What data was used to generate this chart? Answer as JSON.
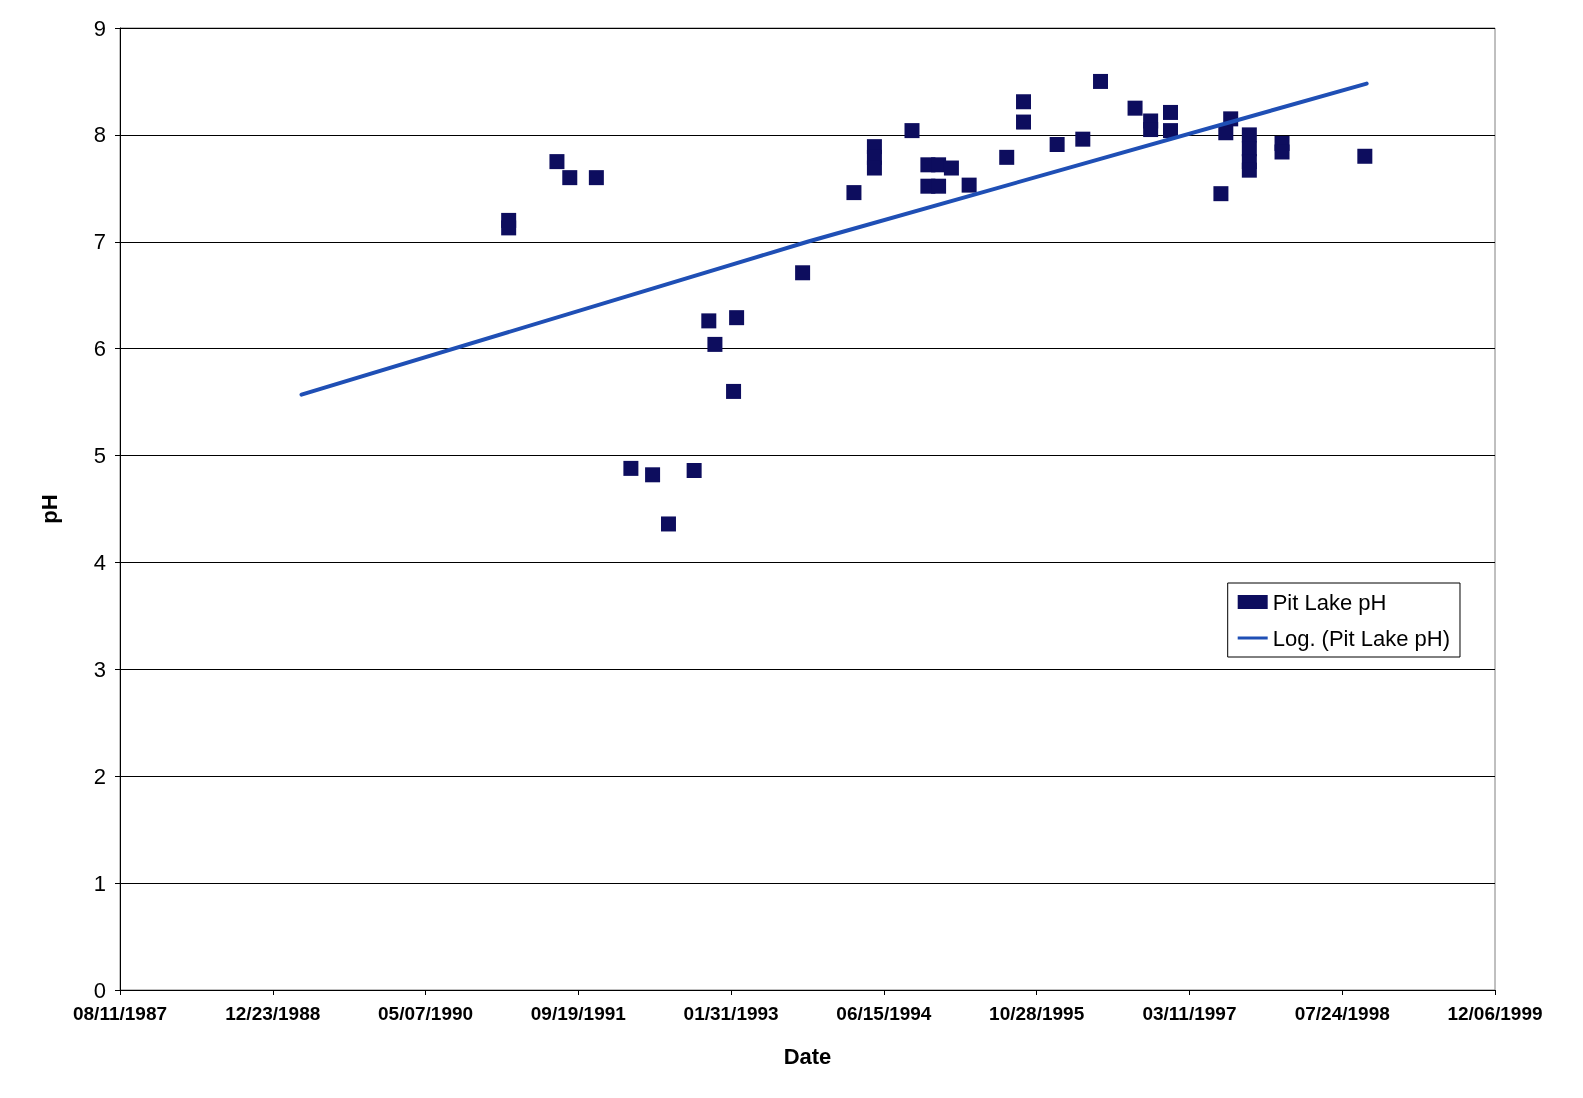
{
  "chart_data": {
    "type": "scatter",
    "xlabel": "Date",
    "ylabel": "pH",
    "xlim": [
      "1987-08-11",
      "1999-12-06"
    ],
    "xticks": [
      {
        "value": "1987-08-11",
        "label": "08/11/1987"
      },
      {
        "value": "1988-12-23",
        "label": "12/23/1988"
      },
      {
        "value": "1990-05-07",
        "label": "05/07/1990"
      },
      {
        "value": "1991-09-19",
        "label": "09/19/1991"
      },
      {
        "value": "1993-01-31",
        "label": "01/31/1993"
      },
      {
        "value": "1994-06-15",
        "label": "06/15/1994"
      },
      {
        "value": "1995-10-28",
        "label": "10/28/1995"
      },
      {
        "value": "1997-03-11",
        "label": "03/11/1997"
      },
      {
        "value": "1998-07-24",
        "label": "07/24/1998"
      },
      {
        "value": "1999-12-06",
        "label": "12/06/1999"
      }
    ],
    "ylim": [
      0,
      9
    ],
    "yticks": [
      0,
      1,
      2,
      3,
      4,
      5,
      6,
      7,
      8,
      9
    ],
    "grid": "y",
    "legend": "right",
    "marker": "square",
    "series": [
      {
        "name": "Pit Lake pH",
        "color": "#0d0d5e",
        "x": [
          "1991-02-03",
          "1991-02-03",
          "1991-07-11",
          "1991-08-22",
          "1991-11-17",
          "1992-03-09",
          "1992-05-19",
          "1992-07-10",
          "1992-10-02",
          "1992-11-19",
          "1992-12-09",
          "1993-02-08",
          "1993-02-18",
          "1993-09-22",
          "1994-03-09",
          "1994-05-15",
          "1994-05-15",
          "1994-05-15",
          "1994-09-15",
          "1994-11-06",
          "1994-12-11",
          "1994-11-06",
          "1994-12-11",
          "1995-01-22",
          "1995-03-21",
          "1995-07-22",
          "1995-09-15",
          "1995-09-15",
          "1996-01-03",
          "1996-03-27",
          "1996-05-24",
          "1996-09-14",
          "1996-11-04",
          "1996-11-04",
          "1997-01-08",
          "1997-01-08",
          "1997-06-22",
          "1997-07-08",
          "1997-07-24",
          "1997-09-23",
          "1997-09-23",
          "1997-09-23",
          "1997-09-23",
          "1998-01-08",
          "1998-01-08",
          "1998-10-06"
        ],
        "values": [
          7.2,
          7.13,
          7.75,
          7.6,
          7.6,
          4.88,
          4.82,
          4.36,
          4.86,
          6.26,
          6.04,
          5.6,
          6.29,
          6.71,
          7.46,
          7.89,
          7.79,
          7.69,
          8.04,
          7.72,
          7.72,
          7.52,
          7.52,
          7.69,
          7.53,
          7.79,
          8.31,
          8.12,
          7.91,
          7.96,
          8.5,
          8.25,
          8.13,
          8.05,
          8.21,
          8.04,
          7.45,
          8.02,
          8.15,
          8.0,
          7.87,
          7.75,
          7.67,
          7.92,
          7.84,
          7.8
        ]
      },
      {
        "name": "Log. (Pit Lake pH)",
        "type": "line",
        "color": "#1f4fb5",
        "marker": "none",
        "line_style": "solid",
        "x": [
          "1989-03-27",
          "1993-10-08",
          "1998-10-12"
        ],
        "values": [
          5.57,
          7.0,
          8.48
        ]
      }
    ]
  }
}
